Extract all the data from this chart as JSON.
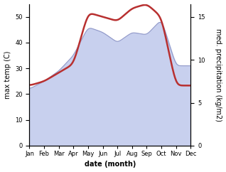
{
  "months": [
    "Jan",
    "Feb",
    "Mar",
    "Apr",
    "May",
    "Jun",
    "Jul",
    "Aug",
    "Sep",
    "Oct",
    "Nov",
    "Dec"
  ],
  "month_indices": [
    1,
    2,
    3,
    4,
    5,
    6,
    7,
    8,
    9,
    10,
    11,
    12
  ],
  "max_temp": [
    22,
    25,
    29,
    35,
    46,
    44,
    40,
    44,
    43,
    49,
    31,
    31
  ],
  "precipitation": [
    7.0,
    7.5,
    8.5,
    9.5,
    15.5,
    15.0,
    14.5,
    16.0,
    16.5,
    15.0,
    7.0,
    7.0
  ],
  "temp_fill_color": "#c8d0ee",
  "temp_line_color": "#9098c8",
  "precip_color": "#b83030",
  "ylabel_left": "max temp (C)",
  "ylabel_right": "med. precipitation (kg/m2)",
  "xlabel": "date (month)",
  "ylim_left": [
    0,
    55
  ],
  "ylim_right": [
    0,
    16.5
  ],
  "yticks_left": [
    0,
    10,
    20,
    30,
    40,
    50
  ],
  "yticks_right": [
    0,
    5,
    10,
    15
  ],
  "background_color": "#ffffff",
  "xlabel_fontsize": 7,
  "ylabel_fontsize": 7,
  "tick_fontsize": 6,
  "linewidth_precip": 1.8
}
